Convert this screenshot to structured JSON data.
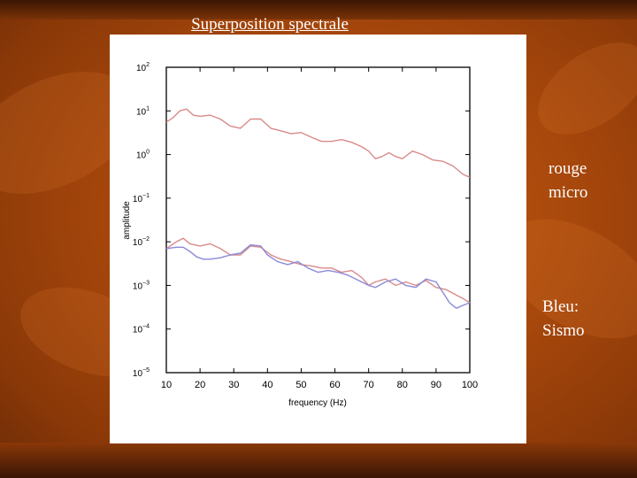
{
  "slide": {
    "title": "Superposition spectrale",
    "labels": {
      "red_line1": "rouge",
      "red_line2": "micro",
      "blue_line1": "Bleu:",
      "blue_line2": "Sismo"
    }
  },
  "colors": {
    "background": "#a8480c",
    "red_series": "#d98a8a",
    "blue_series": "#8a8ad8"
  },
  "chart_data": {
    "type": "line",
    "title": "",
    "xlabel": "frequency (Hz)",
    "ylabel": "amplitude",
    "xlim": [
      10,
      100
    ],
    "ylim_exponent": [
      -5,
      2
    ],
    "yscale": "log",
    "x_ticks": [
      10,
      20,
      30,
      40,
      50,
      60,
      70,
      80,
      90,
      100
    ],
    "y_ticks": [
      {
        "mant": "10",
        "exp": "2",
        "value": 100
      },
      {
        "mant": "10",
        "exp": "1",
        "value": 10
      },
      {
        "mant": "10",
        "exp": "0",
        "value": 1
      },
      {
        "mant": "10",
        "exp": "−1",
        "value": 0.1
      },
      {
        "mant": "10",
        "exp": "−2",
        "value": 0.01
      },
      {
        "mant": "10",
        "exp": "−3",
        "value": 0.001
      },
      {
        "mant": "10",
        "exp": "−4",
        "value": 0.0001
      },
      {
        "mant": "10",
        "exp": "−5",
        "value": 1e-05
      }
    ],
    "grid": false,
    "series": [
      {
        "color": "#d98a8a",
        "points": [
          [
            10,
            5.5
          ],
          [
            12,
            7
          ],
          [
            14,
            10
          ],
          [
            16,
            11
          ],
          [
            18,
            8
          ],
          [
            20,
            7.5
          ],
          [
            23,
            8
          ],
          [
            26,
            6.5
          ],
          [
            29,
            4.5
          ],
          [
            32,
            4
          ],
          [
            35,
            6.5
          ],
          [
            38,
            6.5
          ],
          [
            41,
            4
          ],
          [
            44,
            3.5
          ],
          [
            47,
            3
          ],
          [
            50,
            3.2
          ],
          [
            53,
            2.5
          ],
          [
            56,
            2
          ],
          [
            59,
            2
          ],
          [
            62,
            2.2
          ],
          [
            65,
            1.9
          ],
          [
            68,
            1.5
          ],
          [
            70,
            1.2
          ],
          [
            72,
            0.8
          ],
          [
            74,
            0.9
          ],
          [
            76,
            1.1
          ],
          [
            78,
            0.9
          ],
          [
            80,
            0.8
          ],
          [
            83,
            1.2
          ],
          [
            86,
            1
          ],
          [
            89,
            0.75
          ],
          [
            92,
            0.7
          ],
          [
            95,
            0.55
          ],
          [
            98,
            0.35
          ],
          [
            100,
            0.3
          ]
        ]
      },
      {
        "color": "#d98a8a",
        "points": [
          [
            10,
            0.007
          ],
          [
            13,
            0.01
          ],
          [
            15,
            0.012
          ],
          [
            17,
            0.009
          ],
          [
            20,
            0.008
          ],
          [
            23,
            0.009
          ],
          [
            26,
            0.007
          ],
          [
            29,
            0.005
          ],
          [
            32,
            0.005
          ],
          [
            35,
            0.008
          ],
          [
            38,
            0.0075
          ],
          [
            41,
            0.005
          ],
          [
            44,
            0.004
          ],
          [
            47,
            0.0035
          ],
          [
            50,
            0.003
          ],
          [
            53,
            0.0028
          ],
          [
            56,
            0.0025
          ],
          [
            59,
            0.0025
          ],
          [
            62,
            0.002
          ],
          [
            65,
            0.0022
          ],
          [
            68,
            0.0015
          ],
          [
            70,
            0.001
          ],
          [
            72,
            0.0012
          ],
          [
            75,
            0.0014
          ],
          [
            78,
            0.001
          ],
          [
            81,
            0.0012
          ],
          [
            84,
            0.001
          ],
          [
            87,
            0.0013
          ],
          [
            90,
            0.0009
          ],
          [
            93,
            0.0008
          ],
          [
            96,
            0.0006
          ],
          [
            98,
            0.0005
          ],
          [
            100,
            0.0004
          ]
        ]
      },
      {
        "color": "#8a8ad8",
        "points": [
          [
            10,
            0.007
          ],
          [
            13,
            0.0075
          ],
          [
            15,
            0.0075
          ],
          [
            17,
            0.006
          ],
          [
            19,
            0.0045
          ],
          [
            21,
            0.004
          ],
          [
            23,
            0.004
          ],
          [
            26,
            0.0043
          ],
          [
            29,
            0.005
          ],
          [
            32,
            0.0055
          ],
          [
            35,
            0.0085
          ],
          [
            38,
            0.008
          ],
          [
            40,
            0.005
          ],
          [
            43,
            0.0035
          ],
          [
            46,
            0.003
          ],
          [
            49,
            0.0035
          ],
          [
            52,
            0.0025
          ],
          [
            55,
            0.002
          ],
          [
            58,
            0.0022
          ],
          [
            61,
            0.002
          ],
          [
            64,
            0.0017
          ],
          [
            67,
            0.0013
          ],
          [
            70,
            0.001
          ],
          [
            72,
            0.0009
          ],
          [
            75,
            0.0012
          ],
          [
            78,
            0.0014
          ],
          [
            81,
            0.001
          ],
          [
            84,
            0.0009
          ],
          [
            87,
            0.0014
          ],
          [
            90,
            0.0012
          ],
          [
            92,
            0.0007
          ],
          [
            94,
            0.0004
          ],
          [
            96,
            0.0003
          ],
          [
            98,
            0.00035
          ],
          [
            100,
            0.0004
          ]
        ]
      }
    ]
  }
}
